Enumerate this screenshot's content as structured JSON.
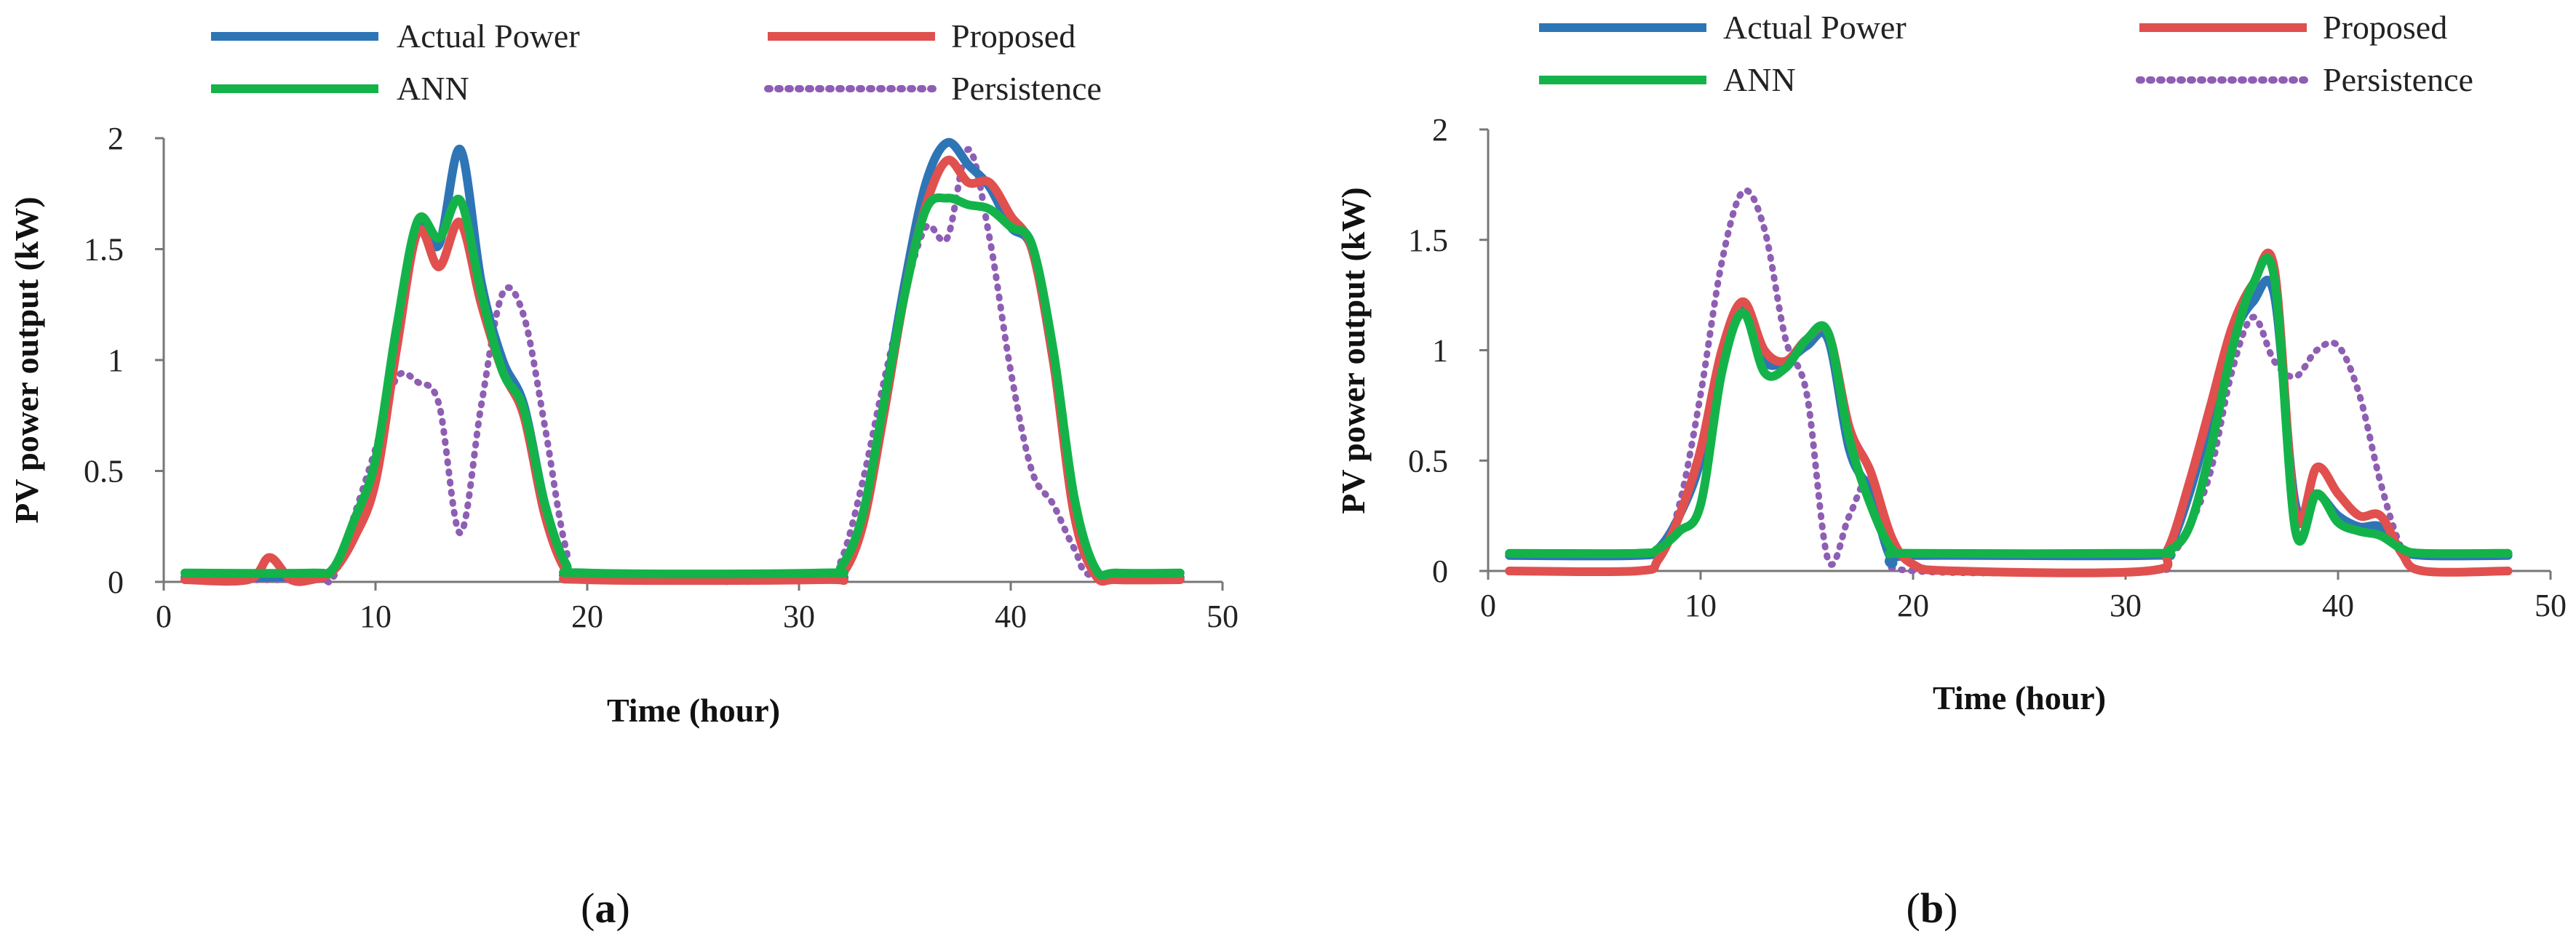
{
  "chart_data": [
    {
      "type": "line",
      "caption": "a",
      "xlabel": "Time (hour)",
      "ylabel": "PV power output (kW)",
      "xlim": [
        0,
        50
      ],
      "ylim": [
        0,
        2
      ],
      "xticks": [
        0,
        10,
        20,
        30,
        40,
        50
      ],
      "yticks": [
        0,
        0.5,
        1,
        1.5,
        2
      ],
      "xtick_labels": [
        "0",
        "10",
        "20",
        "30",
        "40",
        "50"
      ],
      "ytick_labels": [
        "0",
        "0.5",
        "1",
        "1.5",
        "2"
      ],
      "legend_position": "top",
      "series": [
        {
          "name": "Actual Power",
          "color": "#2e75b6",
          "style": "solid",
          "points": [
            [
              1,
              0.02
            ],
            [
              4,
              0.02
            ],
            [
              7,
              0.03
            ],
            [
              8,
              0.06
            ],
            [
              9,
              0.25
            ],
            [
              10,
              0.5
            ],
            [
              11,
              1.1
            ],
            [
              12,
              1.6
            ],
            [
              13,
              1.52
            ],
            [
              14,
              1.95
            ],
            [
              15,
              1.35
            ],
            [
              16,
              1.0
            ],
            [
              17,
              0.8
            ],
            [
              18,
              0.35
            ],
            [
              19,
              0.08
            ],
            [
              20,
              0.02
            ],
            [
              31,
              0.02
            ],
            [
              32,
              0.05
            ],
            [
              33,
              0.3
            ],
            [
              34,
              0.8
            ],
            [
              35,
              1.35
            ],
            [
              36,
              1.8
            ],
            [
              37,
              1.98
            ],
            [
              38,
              1.88
            ],
            [
              39,
              1.78
            ],
            [
              40,
              1.6
            ],
            [
              41,
              1.5
            ],
            [
              42,
              1.0
            ],
            [
              43,
              0.35
            ],
            [
              44,
              0.05
            ],
            [
              45,
              0.02
            ],
            [
              48,
              0.02
            ]
          ]
        },
        {
          "name": "Proposed",
          "color": "#e0504e",
          "style": "solid",
          "points": [
            [
              1,
              0.01
            ],
            [
              4,
              0.01
            ],
            [
              5,
              0.11
            ],
            [
              6,
              0.01
            ],
            [
              7,
              0.01
            ],
            [
              8,
              0.05
            ],
            [
              9,
              0.2
            ],
            [
              10,
              0.45
            ],
            [
              11,
              1.05
            ],
            [
              12,
              1.58
            ],
            [
              13,
              1.42
            ],
            [
              14,
              1.62
            ],
            [
              15,
              1.25
            ],
            [
              16,
              0.95
            ],
            [
              17,
              0.75
            ],
            [
              18,
              0.3
            ],
            [
              19,
              0.05
            ],
            [
              20,
              0.01
            ],
            [
              31,
              0.01
            ],
            [
              32,
              0.03
            ],
            [
              33,
              0.25
            ],
            [
              34,
              0.75
            ],
            [
              35,
              1.3
            ],
            [
              36,
              1.7
            ],
            [
              37,
              1.9
            ],
            [
              38,
              1.8
            ],
            [
              39,
              1.8
            ],
            [
              40,
              1.65
            ],
            [
              41,
              1.5
            ],
            [
              42,
              1.0
            ],
            [
              43,
              0.3
            ],
            [
              44,
              0.03
            ],
            [
              45,
              0.01
            ],
            [
              48,
              0.01
            ]
          ]
        },
        {
          "name": "ANN",
          "color": "#14b34a",
          "style": "solid",
          "points": [
            [
              1,
              0.04
            ],
            [
              7,
              0.04
            ],
            [
              8,
              0.06
            ],
            [
              9,
              0.28
            ],
            [
              10,
              0.55
            ],
            [
              11,
              1.15
            ],
            [
              12,
              1.63
            ],
            [
              13,
              1.55
            ],
            [
              14,
              1.72
            ],
            [
              15,
              1.3
            ],
            [
              16,
              0.95
            ],
            [
              17,
              0.78
            ],
            [
              18,
              0.35
            ],
            [
              19,
              0.08
            ],
            [
              20,
              0.04
            ],
            [
              31,
              0.04
            ],
            [
              32,
              0.07
            ],
            [
              33,
              0.3
            ],
            [
              34,
              0.8
            ],
            [
              35,
              1.3
            ],
            [
              36,
              1.68
            ],
            [
              37,
              1.73
            ],
            [
              38,
              1.7
            ],
            [
              39,
              1.68
            ],
            [
              40,
              1.6
            ],
            [
              41,
              1.52
            ],
            [
              42,
              1.05
            ],
            [
              43,
              0.38
            ],
            [
              44,
              0.06
            ],
            [
              45,
              0.04
            ],
            [
              48,
              0.04
            ]
          ]
        },
        {
          "name": "Persistence",
          "color": "#8e5eb4",
          "style": "dotted",
          "points": [
            [
              1,
              0.01
            ],
            [
              7,
              0.01
            ],
            [
              8,
              0.02
            ],
            [
              9,
              0.3
            ],
            [
              10,
              0.6
            ],
            [
              11,
              0.92
            ],
            [
              12,
              0.9
            ],
            [
              13,
              0.8
            ],
            [
              14,
              0.22
            ],
            [
              15,
              0.8
            ],
            [
              16,
              1.3
            ],
            [
              17,
              1.2
            ],
            [
              18,
              0.7
            ],
            [
              19,
              0.15
            ],
            [
              20,
              0.02
            ],
            [
              31,
              0.01
            ],
            [
              32,
              0.1
            ],
            [
              33,
              0.45
            ],
            [
              34,
              0.9
            ],
            [
              35,
              1.3
            ],
            [
              36,
              1.6
            ],
            [
              37,
              1.55
            ],
            [
              38,
              1.95
            ],
            [
              39,
              1.55
            ],
            [
              40,
              0.95
            ],
            [
              41,
              0.5
            ],
            [
              42,
              0.35
            ],
            [
              43,
              0.15
            ],
            [
              44,
              0.02
            ],
            [
              48,
              0.01
            ]
          ]
        }
      ]
    },
    {
      "type": "line",
      "caption": "b",
      "xlabel": "Time (hour)",
      "ylabel": "PV power output (kW)",
      "xlim": [
        0,
        50
      ],
      "ylim": [
        0,
        2
      ],
      "xticks": [
        0,
        10,
        20,
        30,
        40,
        50
      ],
      "yticks": [
        0,
        0.5,
        1,
        1.5,
        2
      ],
      "xtick_labels": [
        "0",
        "10",
        "20",
        "30",
        "40",
        "50"
      ],
      "ytick_labels": [
        "0",
        "0.5",
        "1",
        "1.5",
        "2"
      ],
      "legend_position": "top",
      "series": [
        {
          "name": "Actual Power",
          "color": "#2e75b6",
          "style": "solid",
          "points": [
            [
              1,
              0.07
            ],
            [
              7,
              0.07
            ],
            [
              8,
              0.1
            ],
            [
              9,
              0.25
            ],
            [
              10,
              0.5
            ],
            [
              11,
              0.95
            ],
            [
              12,
              1.18
            ],
            [
              13,
              0.95
            ],
            [
              14,
              0.95
            ],
            [
              15,
              1.02
            ],
            [
              16,
              1.05
            ],
            [
              17,
              0.55
            ],
            [
              18,
              0.35
            ],
            [
              19,
              0.05
            ],
            [
              20,
              0.07
            ],
            [
              31,
              0.07
            ],
            [
              32,
              0.1
            ],
            [
              33,
              0.35
            ],
            [
              34,
              0.7
            ],
            [
              35,
              1.05
            ],
            [
              36,
              1.22
            ],
            [
              37,
              1.25
            ],
            [
              38,
              0.3
            ],
            [
              39,
              0.35
            ],
            [
              40,
              0.25
            ],
            [
              41,
              0.2
            ],
            [
              42,
              0.2
            ],
            [
              43,
              0.1
            ],
            [
              44,
              0.07
            ],
            [
              48,
              0.07
            ]
          ]
        },
        {
          "name": "Proposed",
          "color": "#e0504e",
          "style": "solid",
          "points": [
            [
              1,
              0.0
            ],
            [
              7,
              0.0
            ],
            [
              8,
              0.05
            ],
            [
              9,
              0.25
            ],
            [
              10,
              0.55
            ],
            [
              11,
              1.0
            ],
            [
              12,
              1.22
            ],
            [
              13,
              1.0
            ],
            [
              14,
              0.95
            ],
            [
              15,
              1.05
            ],
            [
              16,
              1.08
            ],
            [
              17,
              0.65
            ],
            [
              18,
              0.45
            ],
            [
              19,
              0.15
            ],
            [
              20,
              0.03
            ],
            [
              22,
              0.0
            ],
            [
              31,
              0.0
            ],
            [
              32,
              0.1
            ],
            [
              33,
              0.4
            ],
            [
              34,
              0.75
            ],
            [
              35,
              1.1
            ],
            [
              36,
              1.3
            ],
            [
              37,
              1.37
            ],
            [
              38,
              0.25
            ],
            [
              39,
              0.47
            ],
            [
              40,
              0.35
            ],
            [
              41,
              0.25
            ],
            [
              42,
              0.25
            ],
            [
              43,
              0.08
            ],
            [
              44,
              0.0
            ],
            [
              48,
              0.0
            ]
          ]
        },
        {
          "name": "ANN",
          "color": "#14b34a",
          "style": "solid",
          "points": [
            [
              1,
              0.08
            ],
            [
              7,
              0.08
            ],
            [
              8,
              0.1
            ],
            [
              9,
              0.18
            ],
            [
              10,
              0.3
            ],
            [
              11,
              0.9
            ],
            [
              12,
              1.17
            ],
            [
              13,
              0.9
            ],
            [
              14,
              0.92
            ],
            [
              15,
              1.05
            ],
            [
              16,
              1.08
            ],
            [
              17,
              0.6
            ],
            [
              18,
              0.3
            ],
            [
              19,
              0.1
            ],
            [
              20,
              0.08
            ],
            [
              31,
              0.08
            ],
            [
              32,
              0.09
            ],
            [
              33,
              0.2
            ],
            [
              34,
              0.55
            ],
            [
              35,
              1.0
            ],
            [
              36,
              1.3
            ],
            [
              37,
              1.33
            ],
            [
              38,
              0.18
            ],
            [
              39,
              0.35
            ],
            [
              40,
              0.22
            ],
            [
              41,
              0.18
            ],
            [
              42,
              0.16
            ],
            [
              43,
              0.1
            ],
            [
              44,
              0.08
            ],
            [
              48,
              0.08
            ]
          ]
        },
        {
          "name": "Persistence",
          "color": "#8e5eb4",
          "style": "dotted",
          "points": [
            [
              1,
              0.0
            ],
            [
              7,
              0.0
            ],
            [
              8,
              0.05
            ],
            [
              9,
              0.3
            ],
            [
              10,
              0.8
            ],
            [
              11,
              1.4
            ],
            [
              12,
              1.72
            ],
            [
              13,
              1.55
            ],
            [
              14,
              1.05
            ],
            [
              15,
              0.8
            ],
            [
              16,
              0.05
            ],
            [
              17,
              0.25
            ],
            [
              18,
              0.42
            ],
            [
              19,
              0.1
            ],
            [
              20,
              0.0
            ],
            [
              31,
              0.0
            ],
            [
              32,
              0.05
            ],
            [
              33,
              0.2
            ],
            [
              34,
              0.45
            ],
            [
              35,
              0.9
            ],
            [
              36,
              1.15
            ],
            [
              37,
              0.95
            ],
            [
              38,
              0.88
            ],
            [
              39,
              1.0
            ],
            [
              40,
              1.02
            ],
            [
              41,
              0.8
            ],
            [
              42,
              0.4
            ],
            [
              43,
              0.1
            ],
            [
              44,
              0.0
            ],
            [
              48,
              0.0
            ]
          ]
        }
      ]
    }
  ]
}
